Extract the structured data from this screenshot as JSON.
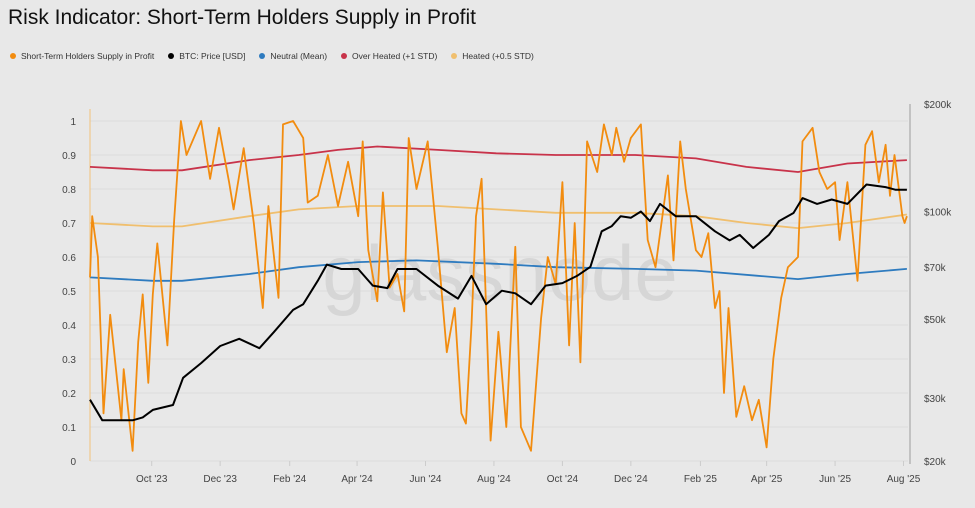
{
  "chart_data": {
    "type": "line",
    "title": "Risk Indicator: Short-Term Holders Supply in Profit",
    "watermark": "glassnode",
    "legend_position": "top-left",
    "grid": true,
    "x_tick_labels": [
      "Oct '23",
      "Dec '23",
      "Feb '24",
      "Apr '24",
      "Jun '24",
      "Aug '24",
      "Oct '24",
      "Dec '24",
      "Feb '25",
      "Apr '25",
      "Jun '25",
      "Aug '25"
    ],
    "x_ticks": [
      "2023-10-01",
      "2023-12-01",
      "2024-02-01",
      "2024-04-01",
      "2024-06-01",
      "2024-08-01",
      "2024-10-01",
      "2024-12-01",
      "2025-02-01",
      "2025-04-01",
      "2025-06-01",
      "2025-08-01"
    ],
    "xlim": [
      "2023-08-07",
      "2025-08-05"
    ],
    "y_left": {
      "ylim": [
        0,
        1
      ],
      "tick_labels": [
        "0",
        "0.1",
        "0.2",
        "0.3",
        "0.4",
        "0.5",
        "0.6",
        "0.7",
        "0.8",
        "0.9",
        "1"
      ],
      "ticks": [
        0,
        0.1,
        0.2,
        0.3,
        0.4,
        0.5,
        0.6,
        0.7,
        0.8,
        0.9,
        1
      ]
    },
    "y_right": {
      "scale": "log",
      "ylim": [
        20000,
        200000
      ],
      "tick_labels": [
        "$20k",
        "$30k",
        "$50k",
        "$70k",
        "$100k",
        "$200k"
      ],
      "ticks": [
        20000,
        30000,
        50000,
        70000,
        100000,
        200000
      ]
    },
    "series": [
      {
        "name": "Short-Term Holders Supply in Profit",
        "axis": "left",
        "color": "#f28c0f",
        "points": [
          [
            "2023-08-07",
            0.54
          ],
          [
            "2023-08-09",
            0.72
          ],
          [
            "2023-08-14",
            0.6
          ],
          [
            "2023-08-19",
            0.14
          ],
          [
            "2023-08-25",
            0.43
          ],
          [
            "2023-09-04",
            0.12
          ],
          [
            "2023-09-06",
            0.27
          ],
          [
            "2023-09-14",
            0.03
          ],
          [
            "2023-09-19",
            0.35
          ],
          [
            "2023-09-23",
            0.49
          ],
          [
            "2023-09-28",
            0.23
          ],
          [
            "2023-10-02",
            0.49
          ],
          [
            "2023-10-06",
            0.64
          ],
          [
            "2023-10-15",
            0.34
          ],
          [
            "2023-10-21",
            0.71
          ],
          [
            "2023-10-27",
            1.0
          ],
          [
            "2023-11-01",
            0.9
          ],
          [
            "2023-11-14",
            1.0
          ],
          [
            "2023-11-22",
            0.83
          ],
          [
            "2023-11-30",
            0.98
          ],
          [
            "2023-12-09",
            0.82
          ],
          [
            "2023-12-13",
            0.74
          ],
          [
            "2023-12-22",
            0.92
          ],
          [
            "2023-12-31",
            0.7
          ],
          [
            "2024-01-08",
            0.45
          ],
          [
            "2024-01-13",
            0.75
          ],
          [
            "2024-01-22",
            0.48
          ],
          [
            "2024-01-26",
            0.99
          ],
          [
            "2024-02-04",
            1.0
          ],
          [
            "2024-02-13",
            0.95
          ],
          [
            "2024-02-17",
            0.76
          ],
          [
            "2024-02-26",
            0.78
          ],
          [
            "2024-03-06",
            0.9
          ],
          [
            "2024-03-15",
            0.75
          ],
          [
            "2024-03-24",
            0.88
          ],
          [
            "2024-04-02",
            0.72
          ],
          [
            "2024-04-06",
            0.94
          ],
          [
            "2024-04-11",
            0.62
          ],
          [
            "2024-04-19",
            0.47
          ],
          [
            "2024-04-24",
            0.79
          ],
          [
            "2024-04-30",
            0.51
          ],
          [
            "2024-05-07",
            0.55
          ],
          [
            "2024-05-13",
            0.44
          ],
          [
            "2024-05-17",
            0.95
          ],
          [
            "2024-05-24",
            0.8
          ],
          [
            "2024-06-03",
            0.94
          ],
          [
            "2024-06-12",
            0.63
          ],
          [
            "2024-06-20",
            0.32
          ],
          [
            "2024-06-27",
            0.45
          ],
          [
            "2024-07-03",
            0.14
          ],
          [
            "2024-07-07",
            0.11
          ],
          [
            "2024-07-12",
            0.4
          ],
          [
            "2024-07-16",
            0.72
          ],
          [
            "2024-07-21",
            0.83
          ],
          [
            "2024-07-25",
            0.45
          ],
          [
            "2024-07-29",
            0.06
          ],
          [
            "2024-08-05",
            0.38
          ],
          [
            "2024-08-12",
            0.1
          ],
          [
            "2024-08-20",
            0.63
          ],
          [
            "2024-08-25",
            0.1
          ],
          [
            "2024-09-03",
            0.03
          ],
          [
            "2024-09-12",
            0.42
          ],
          [
            "2024-09-18",
            0.6
          ],
          [
            "2024-09-25",
            0.52
          ],
          [
            "2024-10-01",
            0.82
          ],
          [
            "2024-10-07",
            0.34
          ],
          [
            "2024-10-12",
            0.7
          ],
          [
            "2024-10-17",
            0.29
          ],
          [
            "2024-10-23",
            0.94
          ],
          [
            "2024-11-01",
            0.85
          ],
          [
            "2024-11-07",
            0.99
          ],
          [
            "2024-11-14",
            0.9
          ],
          [
            "2024-11-18",
            0.98
          ],
          [
            "2024-11-25",
            0.88
          ],
          [
            "2024-12-01",
            0.95
          ],
          [
            "2024-12-10",
            0.99
          ],
          [
            "2024-12-16",
            0.65
          ],
          [
            "2024-12-23",
            0.57
          ],
          [
            "2025-01-03",
            0.84
          ],
          [
            "2025-01-08",
            0.59
          ],
          [
            "2025-01-14",
            0.94
          ],
          [
            "2025-01-19",
            0.8
          ],
          [
            "2025-01-28",
            0.62
          ],
          [
            "2025-02-02",
            0.6
          ],
          [
            "2025-02-08",
            0.67
          ],
          [
            "2025-02-14",
            0.45
          ],
          [
            "2025-02-18",
            0.5
          ],
          [
            "2025-02-22",
            0.2
          ],
          [
            "2025-02-26",
            0.45
          ],
          [
            "2025-03-05",
            0.13
          ],
          [
            "2025-03-12",
            0.22
          ],
          [
            "2025-03-19",
            0.12
          ],
          [
            "2025-03-25",
            0.18
          ],
          [
            "2025-04-01",
            0.04
          ],
          [
            "2025-04-07",
            0.3
          ],
          [
            "2025-04-14",
            0.48
          ],
          [
            "2025-04-20",
            0.57
          ],
          [
            "2025-04-29",
            0.6
          ],
          [
            "2025-05-03",
            0.94
          ],
          [
            "2025-05-12",
            0.98
          ],
          [
            "2025-05-18",
            0.85
          ],
          [
            "2025-05-25",
            0.8
          ],
          [
            "2025-06-01",
            0.82
          ],
          [
            "2025-06-05",
            0.65
          ],
          [
            "2025-06-12",
            0.82
          ],
          [
            "2025-06-21",
            0.53
          ],
          [
            "2025-06-28",
            0.93
          ],
          [
            "2025-07-04",
            0.97
          ],
          [
            "2025-07-10",
            0.82
          ],
          [
            "2025-07-16",
            0.93
          ],
          [
            "2025-07-20",
            0.78
          ],
          [
            "2025-07-24",
            0.9
          ],
          [
            "2025-07-31",
            0.72
          ],
          [
            "2025-08-02",
            0.7
          ],
          [
            "2025-08-04",
            0.72
          ]
        ]
      },
      {
        "name": "BTC: Price [USD]",
        "axis": "right",
        "color": "#000000",
        "points": [
          [
            "2023-08-07",
            29700
          ],
          [
            "2023-08-18",
            26000
          ],
          [
            "2023-09-14",
            26000
          ],
          [
            "2023-09-23",
            26500
          ],
          [
            "2023-10-02",
            27800
          ],
          [
            "2023-10-20",
            28700
          ],
          [
            "2023-10-29",
            34200
          ],
          [
            "2023-11-14",
            37600
          ],
          [
            "2023-12-01",
            42000
          ],
          [
            "2023-12-18",
            44000
          ],
          [
            "2024-01-05",
            41400
          ],
          [
            "2024-01-18",
            46000
          ],
          [
            "2024-02-04",
            53000
          ],
          [
            "2024-02-13",
            55000
          ],
          [
            "2024-02-26",
            64000
          ],
          [
            "2024-03-05",
            71000
          ],
          [
            "2024-03-18",
            69000
          ],
          [
            "2024-04-02",
            69000
          ],
          [
            "2024-04-15",
            62000
          ],
          [
            "2024-04-28",
            61000
          ],
          [
            "2024-05-07",
            69000
          ],
          [
            "2024-05-24",
            69000
          ],
          [
            "2024-06-12",
            62000
          ],
          [
            "2024-06-30",
            57000
          ],
          [
            "2024-07-12",
            66000
          ],
          [
            "2024-07-25",
            55000
          ],
          [
            "2024-08-08",
            60000
          ],
          [
            "2024-08-20",
            59000
          ],
          [
            "2024-09-03",
            55000
          ],
          [
            "2024-09-16",
            62000
          ],
          [
            "2024-10-01",
            63000
          ],
          [
            "2024-10-14",
            66000
          ],
          [
            "2024-10-26",
            70000
          ],
          [
            "2024-11-05",
            88000
          ],
          [
            "2024-11-14",
            91000
          ],
          [
            "2024-11-22",
            97000
          ],
          [
            "2024-12-01",
            96000
          ],
          [
            "2024-12-10",
            100000
          ],
          [
            "2024-12-18",
            94000
          ],
          [
            "2024-12-27",
            105000
          ],
          [
            "2025-01-10",
            97000
          ],
          [
            "2025-01-28",
            97000
          ],
          [
            "2025-02-14",
            88000
          ],
          [
            "2025-02-27",
            83000
          ],
          [
            "2025-03-08",
            86000
          ],
          [
            "2025-03-20",
            79000
          ],
          [
            "2025-04-03",
            86000
          ],
          [
            "2025-04-12",
            94000
          ],
          [
            "2025-04-25",
            99000
          ],
          [
            "2025-05-03",
            109000
          ],
          [
            "2025-05-16",
            105000
          ],
          [
            "2025-05-29",
            108000
          ],
          [
            "2025-06-12",
            105000
          ],
          [
            "2025-06-29",
            119000
          ],
          [
            "2025-07-16",
            117000
          ],
          [
            "2025-07-25",
            115000
          ],
          [
            "2025-08-04",
            115000
          ]
        ]
      },
      {
        "name": "Neutral (Mean)",
        "axis": "left",
        "color": "#2e7bbf",
        "points": [
          [
            "2023-08-07",
            0.54
          ],
          [
            "2023-10-02",
            0.53
          ],
          [
            "2023-10-28",
            0.53
          ],
          [
            "2023-12-27",
            0.55
          ],
          [
            "2024-02-09",
            0.57
          ],
          [
            "2024-04-02",
            0.585
          ],
          [
            "2024-05-24",
            0.59
          ],
          [
            "2024-08-03",
            0.58
          ],
          [
            "2024-09-25",
            0.57
          ],
          [
            "2024-12-05",
            0.565
          ],
          [
            "2025-01-28",
            0.56
          ],
          [
            "2025-03-23",
            0.545
          ],
          [
            "2025-04-29",
            0.535
          ],
          [
            "2025-06-12",
            0.55
          ],
          [
            "2025-08-04",
            0.565
          ]
        ]
      },
      {
        "name": "Over Heated (+1 STD)",
        "axis": "left",
        "color": "#c8334a",
        "points": [
          [
            "2023-08-07",
            0.865
          ],
          [
            "2023-10-02",
            0.855
          ],
          [
            "2023-10-28",
            0.855
          ],
          [
            "2023-12-27",
            0.885
          ],
          [
            "2024-02-09",
            0.9
          ],
          [
            "2024-03-15",
            0.915
          ],
          [
            "2024-04-19",
            0.925
          ],
          [
            "2024-06-12",
            0.915
          ],
          [
            "2024-08-03",
            0.905
          ],
          [
            "2024-09-25",
            0.9
          ],
          [
            "2024-12-05",
            0.9
          ],
          [
            "2025-01-28",
            0.89
          ],
          [
            "2025-03-14",
            0.865
          ],
          [
            "2025-04-29",
            0.85
          ],
          [
            "2025-06-12",
            0.875
          ],
          [
            "2025-08-04",
            0.885
          ]
        ]
      },
      {
        "name": "Heated (+0.5 STD)",
        "axis": "left",
        "color": "#f0bf6e",
        "points": [
          [
            "2023-08-07",
            0.7
          ],
          [
            "2023-10-02",
            0.69
          ],
          [
            "2023-10-28",
            0.69
          ],
          [
            "2023-12-27",
            0.72
          ],
          [
            "2024-02-09",
            0.74
          ],
          [
            "2024-04-02",
            0.75
          ],
          [
            "2024-06-12",
            0.75
          ],
          [
            "2024-08-03",
            0.74
          ],
          [
            "2024-09-25",
            0.73
          ],
          [
            "2024-12-05",
            0.73
          ],
          [
            "2025-01-28",
            0.72
          ],
          [
            "2025-03-14",
            0.7
          ],
          [
            "2025-04-29",
            0.685
          ],
          [
            "2025-06-12",
            0.7
          ],
          [
            "2025-08-04",
            0.725
          ]
        ]
      }
    ]
  }
}
